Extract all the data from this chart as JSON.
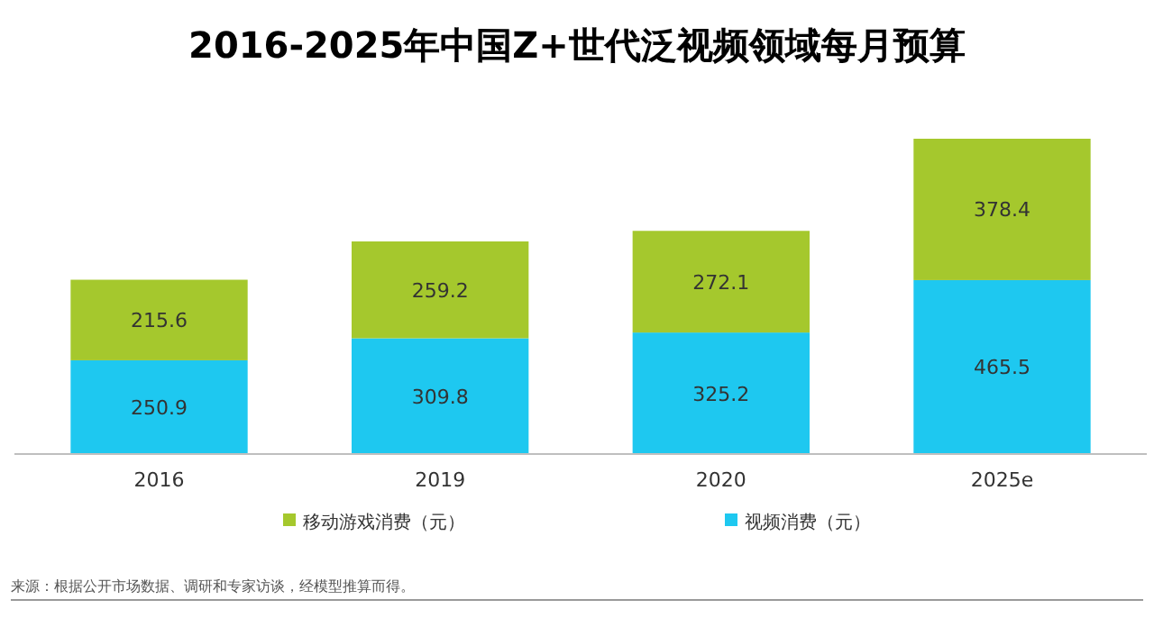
{
  "chart_data": {
    "type": "bar",
    "title": "2016-2025年中国Z+世代泛视频领域每月预算",
    "categories": [
      "2016",
      "2019",
      "2020",
      "2025e"
    ],
    "stacked": true,
    "data_labels": true,
    "legend": "bottom",
    "series": [
      {
        "name": "视频消费（元）",
        "color": "#1ec8f0",
        "values": [
          250.9,
          309.8,
          325.2,
          465.5
        ]
      },
      {
        "name": "移动游戏消费（元）",
        "color": "#a5c82d",
        "values": [
          215.6,
          259.2,
          272.1,
          378.4
        ]
      }
    ],
    "annotations": [
      "来源：根据公开市场数据、调研和专家访谈，经模型推算而得。"
    ]
  }
}
